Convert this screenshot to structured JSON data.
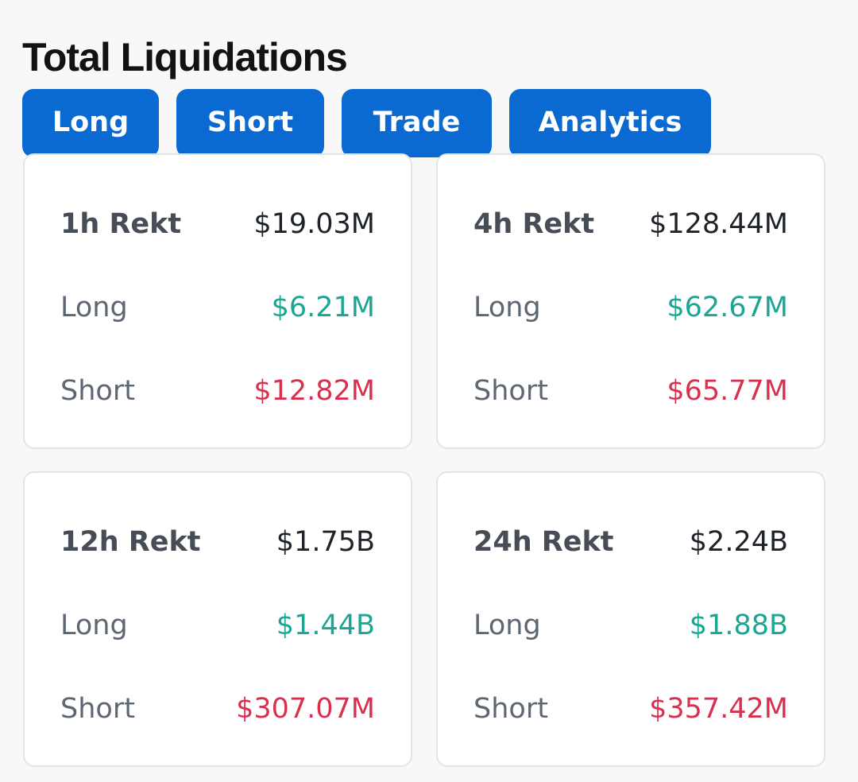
{
  "title": "Total Liquidations",
  "tabs": [
    {
      "label": "Long"
    },
    {
      "label": "Short"
    },
    {
      "label": "Trade"
    },
    {
      "label": "Analytics"
    }
  ],
  "colors": {
    "accent": "#0b6ad1",
    "long": "#1ba593",
    "short": "#d9304e"
  },
  "cards": [
    {
      "label": "1h Rekt",
      "total": "$19.03M",
      "long_label": "Long",
      "long_value": "$6.21M",
      "short_label": "Short",
      "short_value": "$12.82M"
    },
    {
      "label": "4h Rekt",
      "total": "$128.44M",
      "long_label": "Long",
      "long_value": "$62.67M",
      "short_label": "Short",
      "short_value": "$65.77M"
    },
    {
      "label": "12h Rekt",
      "total": "$1.75B",
      "long_label": "Long",
      "long_value": "$1.44B",
      "short_label": "Short",
      "short_value": "$307.07M"
    },
    {
      "label": "24h Rekt",
      "total": "$2.24B",
      "long_label": "Long",
      "long_value": "$1.88B",
      "short_label": "Short",
      "short_value": "$357.42M"
    }
  ]
}
